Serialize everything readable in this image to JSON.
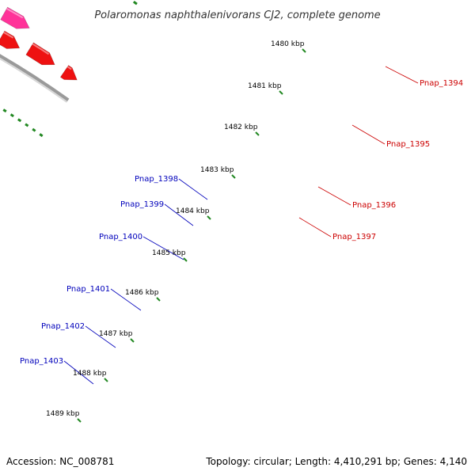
{
  "title": "Polaromonas naphthalenivorans CJ2, complete genome",
  "scale_labels": [
    "1480 kbp",
    "1481 kbp",
    "1482 kbp",
    "1483 kbp",
    "1484 kbp",
    "1485 kbp",
    "1486 kbp",
    "1487 kbp",
    "1488 kbp",
    "1489 kbp"
  ],
  "genes": [
    {
      "name": "Pnap_1394",
      "strand": "+",
      "color": "#ee1111"
    },
    {
      "name": "Pnap_1395",
      "strand": "+",
      "color": "#ff3399"
    },
    {
      "name": "Pnap_1396",
      "strand": "+",
      "color": "#ee1111"
    },
    {
      "name": "Pnap_1397",
      "strand": "+",
      "color": "#ee1111"
    },
    {
      "name": "Pnap_1398",
      "strand": "-",
      "color": "#1111dd"
    },
    {
      "name": "Pnap_1399",
      "strand": "-",
      "color": "#1111dd"
    },
    {
      "name": "Pnap_1400",
      "strand": "-",
      "color": "#bbbbbb"
    },
    {
      "name": "Pnap_1401",
      "strand": "-",
      "color": "#1111dd"
    },
    {
      "name": "Pnap_1402",
      "strand": "-",
      "color": "#1111dd"
    },
    {
      "name": "Pnap_1403",
      "strand": "-",
      "color": "#336699"
    }
  ],
  "colors": {
    "forward_label": "#cc0000",
    "reverse_label": "#0000bb",
    "backbone": "#888888",
    "dots": "#228822"
  },
  "footer": {
    "accession": "Accession: NC_008781",
    "topology": "Topology: circular; Length: 4,410,291 bp; Genes: 4,140"
  }
}
